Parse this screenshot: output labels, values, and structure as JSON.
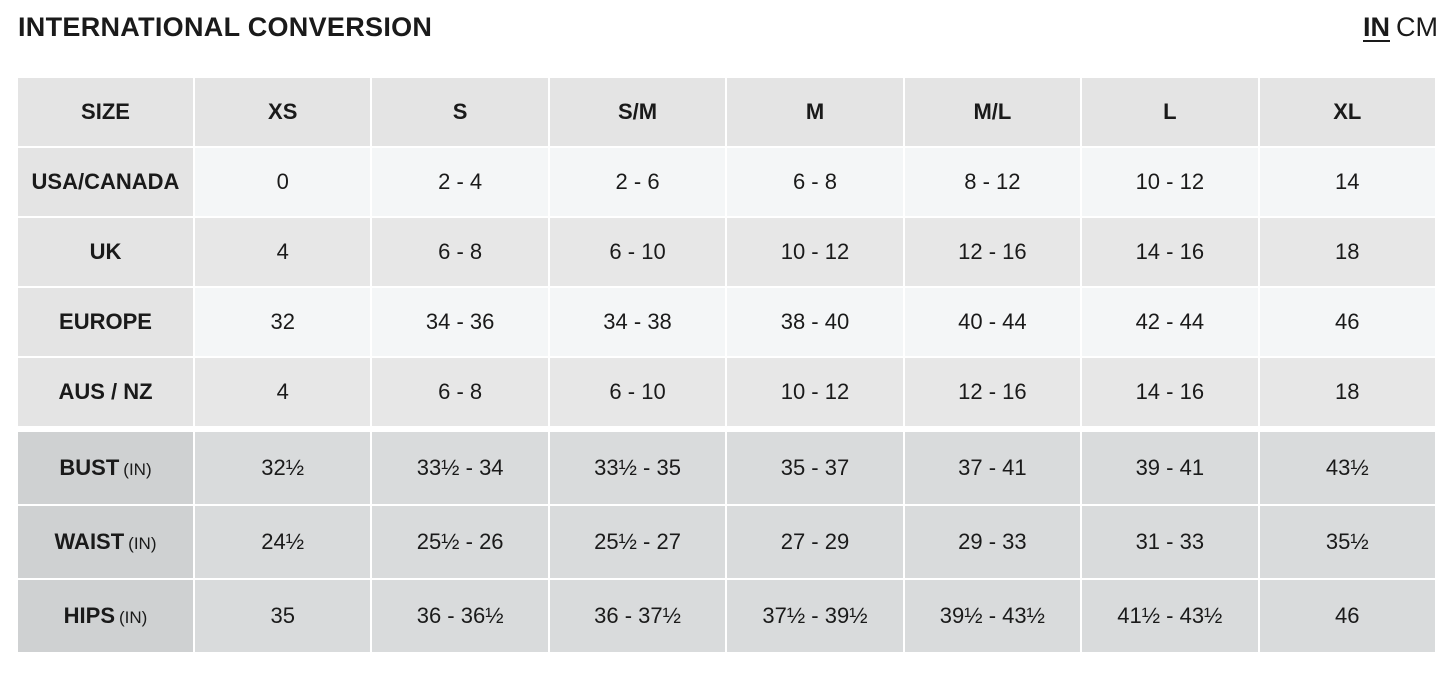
{
  "header": {
    "title": "INTERNATIONAL CONVERSION",
    "unit_in": "IN",
    "unit_cm": "CM"
  },
  "table": {
    "columns": [
      "SIZE",
      "XS",
      "S",
      "S/M",
      "M",
      "M/L",
      "L",
      "XL"
    ],
    "conversion_rows": [
      {
        "label": "USA/CANADA",
        "values": [
          "0",
          "2 - 4",
          "2 - 6",
          "6 - 8",
          "8 - 12",
          "10 - 12",
          "14"
        ]
      },
      {
        "label": "UK",
        "values": [
          "4",
          "6 - 8",
          "6 - 10",
          "10 - 12",
          "12 - 16",
          "14 - 16",
          "18"
        ]
      },
      {
        "label": "EUROPE",
        "values": [
          "32",
          "34 - 36",
          "34 - 38",
          "38 - 40",
          "40 - 44",
          "42 - 44",
          "46"
        ]
      },
      {
        "label": "AUS / NZ",
        "values": [
          "4",
          "6 - 8",
          "6 - 10",
          "10 - 12",
          "12 - 16",
          "14 - 16",
          "18"
        ]
      }
    ],
    "measurement_rows": [
      {
        "label": "BUST",
        "unit": "(IN)",
        "values": [
          "32½",
          "33½ - 34",
          "33½ - 35",
          "35 - 37",
          "37 - 41",
          "39 - 41",
          "43½"
        ]
      },
      {
        "label": "WAIST",
        "unit": "(IN)",
        "values": [
          "24½",
          "25½ - 26",
          "25½ - 27",
          "27 - 29",
          "29 - 33",
          "31 - 33",
          "35½"
        ]
      },
      {
        "label": "HIPS",
        "unit": "(IN)",
        "values": [
          "35",
          "36 - 36½",
          "36 - 37½",
          "37½ - 39½",
          "39½ - 43½",
          "41½ - 43½",
          "46"
        ]
      }
    ]
  }
}
